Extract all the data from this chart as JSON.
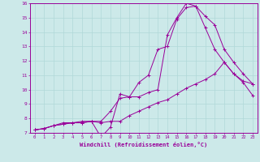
{
  "title": "",
  "xlabel": "Windchill (Refroidissement éolien,°C)",
  "ylabel": "",
  "background_color": "#cce9e9",
  "line_color": "#990099",
  "grid_color": "#b0d8d8",
  "xlim": [
    -0.5,
    23.5
  ],
  "ylim": [
    7,
    16
  ],
  "xticks": [
    0,
    1,
    2,
    3,
    4,
    5,
    6,
    7,
    8,
    9,
    10,
    11,
    12,
    13,
    14,
    15,
    16,
    17,
    18,
    19,
    20,
    21,
    22,
    23
  ],
  "yticks": [
    7,
    8,
    9,
    10,
    11,
    12,
    13,
    14,
    15,
    16
  ],
  "line1_x": [
    0,
    1,
    2,
    3,
    4,
    5,
    6,
    7,
    8,
    9,
    10,
    11,
    12,
    13,
    14,
    15,
    16,
    17,
    18,
    19,
    20,
    21,
    22,
    23
  ],
  "line1_y": [
    7.2,
    7.3,
    7.5,
    7.6,
    7.7,
    7.7,
    7.8,
    7.7,
    7.8,
    7.8,
    8.2,
    8.5,
    8.8,
    9.1,
    9.3,
    9.7,
    10.1,
    10.4,
    10.7,
    11.1,
    11.9,
    11.1,
    10.5,
    9.6
  ],
  "line2_x": [
    0,
    1,
    2,
    3,
    4,
    5,
    6,
    7,
    8,
    9,
    10,
    11,
    12,
    13,
    14,
    15,
    16,
    17,
    18,
    19,
    20,
    21,
    22,
    23
  ],
  "line2_y": [
    7.2,
    7.3,
    7.5,
    7.7,
    7.7,
    7.8,
    7.8,
    7.8,
    8.5,
    9.4,
    9.5,
    10.5,
    11.0,
    12.8,
    13.0,
    14.9,
    15.7,
    15.8,
    15.1,
    14.5,
    12.8,
    11.9,
    11.1,
    10.4
  ],
  "line3_x": [
    0,
    1,
    2,
    3,
    4,
    5,
    6,
    7,
    8,
    9,
    10,
    11,
    12,
    13,
    14,
    15,
    16,
    17,
    18,
    19,
    20,
    21,
    22,
    23
  ],
  "line3_y": [
    7.2,
    7.3,
    7.5,
    7.6,
    7.7,
    7.7,
    7.8,
    6.7,
    7.4,
    9.7,
    9.5,
    9.5,
    9.8,
    10.0,
    13.8,
    15.0,
    16.0,
    15.8,
    14.3,
    12.8,
    11.9,
    11.1,
    10.6,
    10.4
  ]
}
